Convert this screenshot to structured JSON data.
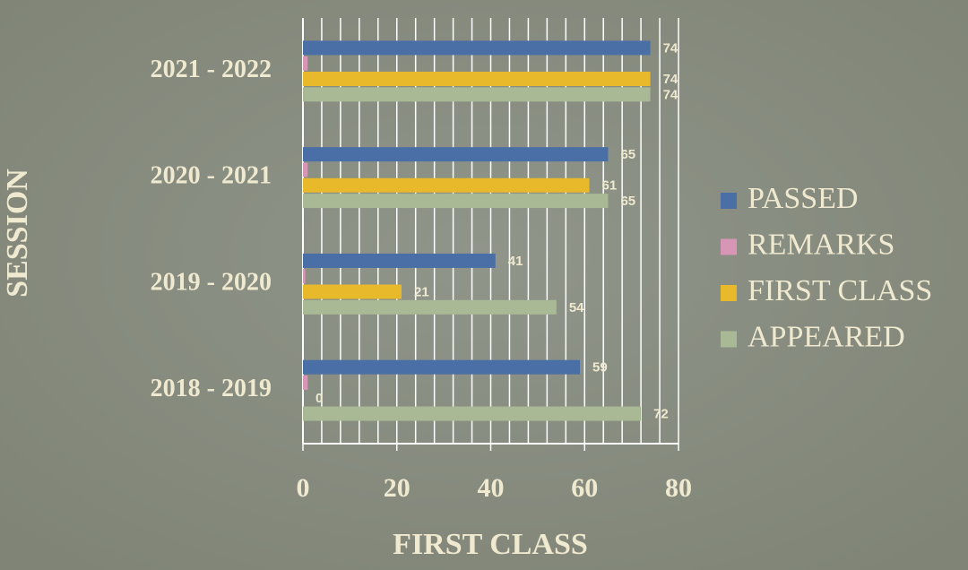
{
  "chart_data": {
    "type": "hbar",
    "categories": [
      "2021 - 2022",
      "2020 - 2021",
      "2019 - 2020",
      "2018 - 2019"
    ],
    "series": [
      {
        "name": "PASSED",
        "color": "#4a6ea6",
        "label_color": "#3f5f8f",
        "values": [
          74,
          65,
          41,
          59
        ]
      },
      {
        "name": "REMARKS",
        "color": "#d896b6",
        "data_labels": false,
        "values": [
          1,
          1,
          0.5,
          1
        ]
      },
      {
        "name": "FIRST CLASS",
        "color": "#e9b92c",
        "label_color": "#e8c870",
        "values": [
          74,
          61,
          21,
          0
        ]
      },
      {
        "name": "APPEARED",
        "color": "#a9b996",
        "label_color": "#2e3526",
        "values": [
          74,
          65,
          54,
          72
        ]
      }
    ],
    "xlim": [
      0,
      80
    ],
    "xticks": [
      0,
      20,
      40,
      60,
      80
    ],
    "grid": true,
    "grid_step": 4,
    "xlabel": "FIRST CLASS",
    "ylabel": "SESSION",
    "legend": "right"
  }
}
